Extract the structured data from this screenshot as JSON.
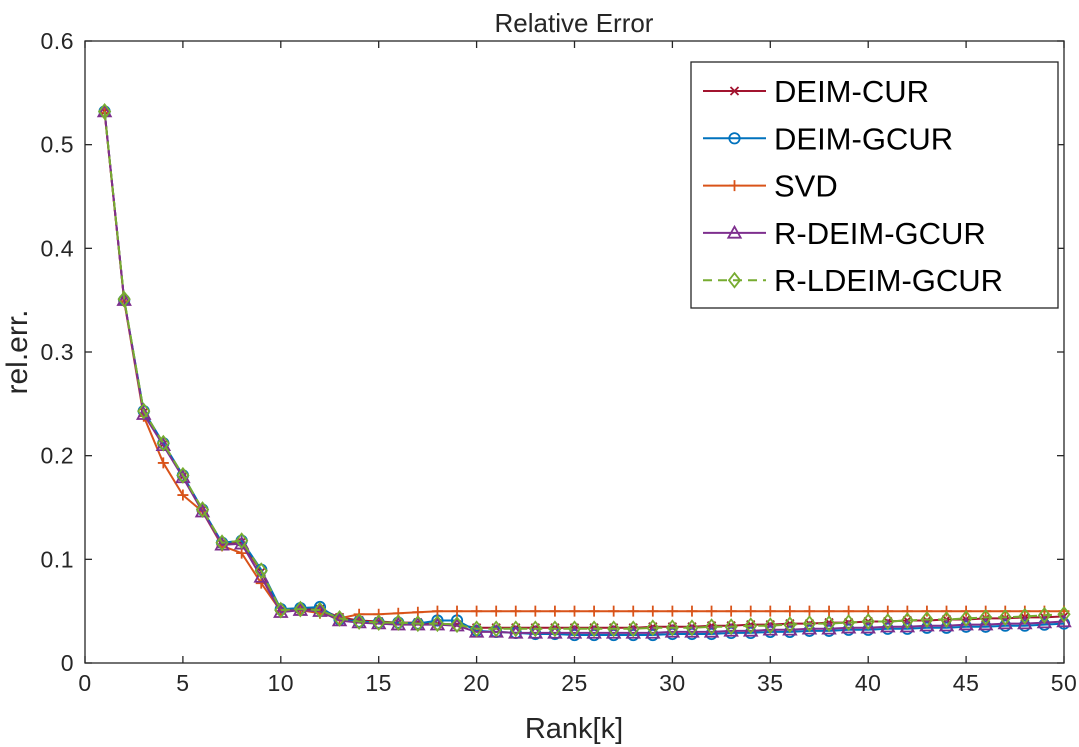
{
  "figure": {
    "background": "#ffffff",
    "axis_color": "#262626",
    "text_color": "#262626"
  },
  "chart_data": {
    "type": "line",
    "title": "Relative Error",
    "xlabel": "Rank[k]",
    "ylabel": "rel.err.",
    "xlim": [
      0,
      50
    ],
    "ylim": [
      0,
      0.6
    ],
    "xticks": [
      0,
      5,
      10,
      15,
      20,
      25,
      30,
      35,
      40,
      45,
      50
    ],
    "xtick_labels": [
      "0",
      "5",
      "10",
      "15",
      "20",
      "25",
      "30",
      "35",
      "40",
      "45",
      "50"
    ],
    "yticks": [
      0,
      0.1,
      0.2,
      0.3,
      0.4,
      0.5,
      0.6
    ],
    "ytick_labels": [
      "0",
      "0.1",
      "0.2",
      "0.3",
      "0.4",
      "0.5",
      "0.6"
    ],
    "grid": false,
    "box": true,
    "legend_position": "top-right",
    "x": [
      1,
      2,
      3,
      4,
      5,
      6,
      7,
      8,
      9,
      10,
      11,
      12,
      13,
      14,
      15,
      16,
      17,
      18,
      19,
      20,
      21,
      22,
      23,
      24,
      25,
      26,
      27,
      28,
      29,
      30,
      31,
      32,
      33,
      34,
      35,
      36,
      37,
      38,
      39,
      40,
      41,
      42,
      43,
      44,
      45,
      46,
      47,
      48,
      49,
      50
    ],
    "series": [
      {
        "name": "DEIM-CUR",
        "color": "#A2142F",
        "marker": "x",
        "line": "solid",
        "values": [
          0.532,
          0.35,
          0.242,
          0.211,
          0.18,
          0.148,
          0.115,
          0.117,
          0.088,
          0.051,
          0.052,
          0.052,
          0.044,
          0.041,
          0.04,
          0.039,
          0.039,
          0.038,
          0.037,
          0.034,
          0.034,
          0.034,
          0.034,
          0.034,
          0.034,
          0.034,
          0.034,
          0.034,
          0.035,
          0.035,
          0.035,
          0.036,
          0.036,
          0.037,
          0.037,
          0.038,
          0.038,
          0.039,
          0.039,
          0.04,
          0.04,
          0.041,
          0.041,
          0.042,
          0.042,
          0.043,
          0.043,
          0.044,
          0.044,
          0.045
        ]
      },
      {
        "name": "DEIM-GCUR",
        "color": "#0072BD",
        "marker": "circle",
        "line": "solid",
        "values": [
          0.532,
          0.35,
          0.243,
          0.212,
          0.181,
          0.148,
          0.116,
          0.118,
          0.09,
          0.052,
          0.053,
          0.054,
          0.042,
          0.04,
          0.039,
          0.039,
          0.038,
          0.041,
          0.041,
          0.031,
          0.03,
          0.029,
          0.028,
          0.028,
          0.027,
          0.027,
          0.027,
          0.027,
          0.027,
          0.028,
          0.028,
          0.028,
          0.029,
          0.029,
          0.03,
          0.03,
          0.031,
          0.031,
          0.032,
          0.032,
          0.033,
          0.033,
          0.034,
          0.034,
          0.035,
          0.035,
          0.036,
          0.036,
          0.037,
          0.038
        ]
      },
      {
        "name": "SVD",
        "color": "#D95319",
        "marker": "plus",
        "line": "solid",
        "values": [
          0.531,
          0.349,
          0.238,
          0.193,
          0.162,
          0.146,
          0.113,
          0.106,
          0.077,
          0.05,
          0.051,
          0.048,
          0.043,
          0.047,
          0.047,
          0.048,
          0.049,
          0.05,
          0.05,
          0.05,
          0.05,
          0.05,
          0.05,
          0.05,
          0.05,
          0.05,
          0.05,
          0.05,
          0.05,
          0.05,
          0.05,
          0.05,
          0.05,
          0.05,
          0.05,
          0.05,
          0.05,
          0.05,
          0.05,
          0.05,
          0.05,
          0.05,
          0.05,
          0.05,
          0.05,
          0.05,
          0.05,
          0.05,
          0.05,
          0.05
        ]
      },
      {
        "name": "R-DEIM-GCUR",
        "color": "#7E2F8E",
        "marker": "triangle",
        "line": "solid",
        "values": [
          0.532,
          0.35,
          0.24,
          0.21,
          0.179,
          0.146,
          0.114,
          0.115,
          0.083,
          0.049,
          0.051,
          0.05,
          0.041,
          0.039,
          0.038,
          0.037,
          0.037,
          0.037,
          0.036,
          0.03,
          0.03,
          0.029,
          0.029,
          0.029,
          0.029,
          0.029,
          0.029,
          0.029,
          0.029,
          0.03,
          0.03,
          0.03,
          0.031,
          0.031,
          0.032,
          0.032,
          0.033,
          0.033,
          0.034,
          0.034,
          0.035,
          0.035,
          0.036,
          0.036,
          0.037,
          0.037,
          0.038,
          0.038,
          0.039,
          0.04
        ]
      },
      {
        "name": "R-LDEIM-GCUR",
        "color": "#77AC30",
        "marker": "diamond",
        "line": "dashed",
        "values": [
          0.532,
          0.351,
          0.243,
          0.212,
          0.181,
          0.148,
          0.116,
          0.118,
          0.089,
          0.051,
          0.052,
          0.051,
          0.043,
          0.04,
          0.039,
          0.039,
          0.038,
          0.038,
          0.037,
          0.033,
          0.033,
          0.033,
          0.033,
          0.033,
          0.033,
          0.033,
          0.033,
          0.033,
          0.034,
          0.034,
          0.034,
          0.035,
          0.035,
          0.036,
          0.036,
          0.037,
          0.038,
          0.038,
          0.039,
          0.04,
          0.04,
          0.041,
          0.042,
          0.042,
          0.043,
          0.044,
          0.044,
          0.045,
          0.046,
          0.047
        ]
      }
    ]
  }
}
